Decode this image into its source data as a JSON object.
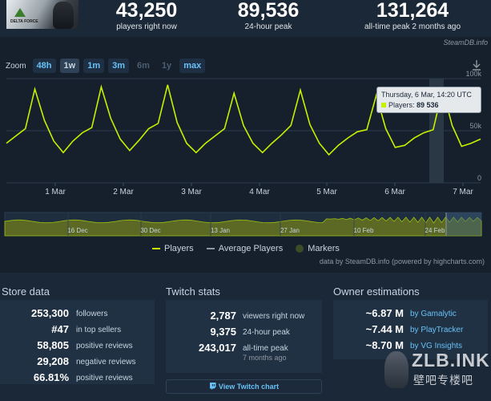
{
  "top_stats": [
    {
      "value": "43,250",
      "label": "players right now"
    },
    {
      "value": "89,536",
      "label": "24-hour peak"
    },
    {
      "value": "131,264",
      "label": "all-time peak 2 months ago"
    }
  ],
  "game_logo_text": "DELTA FORCE",
  "chart_card": {
    "source_tag": "SteamDB.info",
    "zoom_label": "Zoom",
    "zoom_buttons": [
      "48h",
      "1w",
      "1m",
      "3m",
      "6m",
      "1y",
      "max"
    ],
    "zoom_active": "1w",
    "zoom_disabled": [
      "6m",
      "1y"
    ],
    "tooltip": {
      "date": "Thursday, 6 Mar, 14:20 UTC",
      "series": "Players:",
      "value": "89 536"
    },
    "legend": {
      "players": "Players",
      "average": "Average Players",
      "markers": "Markers"
    },
    "credit": "data by SteamDB.info (powered by highcharts.com)",
    "colors": {
      "players": "#c6f000",
      "average": "#8f98a0",
      "markers": "#3b4d27",
      "accent": "#67c1f5"
    }
  },
  "chart_data": {
    "type": "line",
    "title": "",
    "series": [
      {
        "name": "Players",
        "values": [
          38000,
          45000,
          52000,
          90000,
          60000,
          40000,
          29000,
          40000,
          48000,
          53000,
          92000,
          62000,
          42000,
          31000,
          41000,
          52000,
          57000,
          94000,
          58000,
          38000,
          29000,
          38000,
          45000,
          52000,
          86000,
          55000,
          38000,
          29000,
          38000,
          46000,
          55000,
          89000,
          56000,
          38000,
          27000,
          36000,
          43000,
          49000,
          51000,
          84000,
          52000,
          34000,
          36000,
          43000,
          48000,
          51000,
          89536,
          55000,
          35000,
          38000,
          42000
        ]
      }
    ],
    "x_tick_labels": [
      "1 Mar",
      "2 Mar",
      "3 Mar",
      "4 Mar",
      "5 Mar",
      "6 Mar",
      "7 Mar"
    ],
    "y_tick_labels": [
      "0",
      "50k",
      "100k"
    ],
    "ylim": [
      0,
      100000
    ],
    "navigator_labels": [
      "16 Dec",
      "30 Dec",
      "13 Jan",
      "27 Jan",
      "10 Feb",
      "24 Feb"
    ],
    "legend_position": "bottom",
    "grid": true
  },
  "store_data": {
    "title": "Store data",
    "rows": [
      {
        "value": "253,300",
        "label": "followers"
      },
      {
        "value": "#47",
        "label": "in top sellers"
      },
      {
        "value": "58,805",
        "label": "positive reviews"
      },
      {
        "value": "29,208",
        "label": "negative reviews"
      },
      {
        "value": "66.81%",
        "label": "positive reviews"
      }
    ]
  },
  "twitch": {
    "title": "Twitch stats",
    "rows": [
      {
        "value": "2,787",
        "label": "viewers right now"
      },
      {
        "value": "9,375",
        "label": "24-hour peak"
      },
      {
        "value": "243,017",
        "label": "all-time peak",
        "sub": "7 months ago"
      }
    ],
    "button": "View Twitch chart"
  },
  "owners": {
    "title": "Owner estimations",
    "rows": [
      {
        "value": "~6.87 M",
        "label": "by Gamalytic"
      },
      {
        "value": "~7.44 M",
        "label": "by PlayTracker"
      },
      {
        "value": "~8.70 M",
        "label": "by VG Insights"
      }
    ]
  },
  "watermark": {
    "line1": "ZLB.INK",
    "line2": "壁吧专楼吧"
  }
}
